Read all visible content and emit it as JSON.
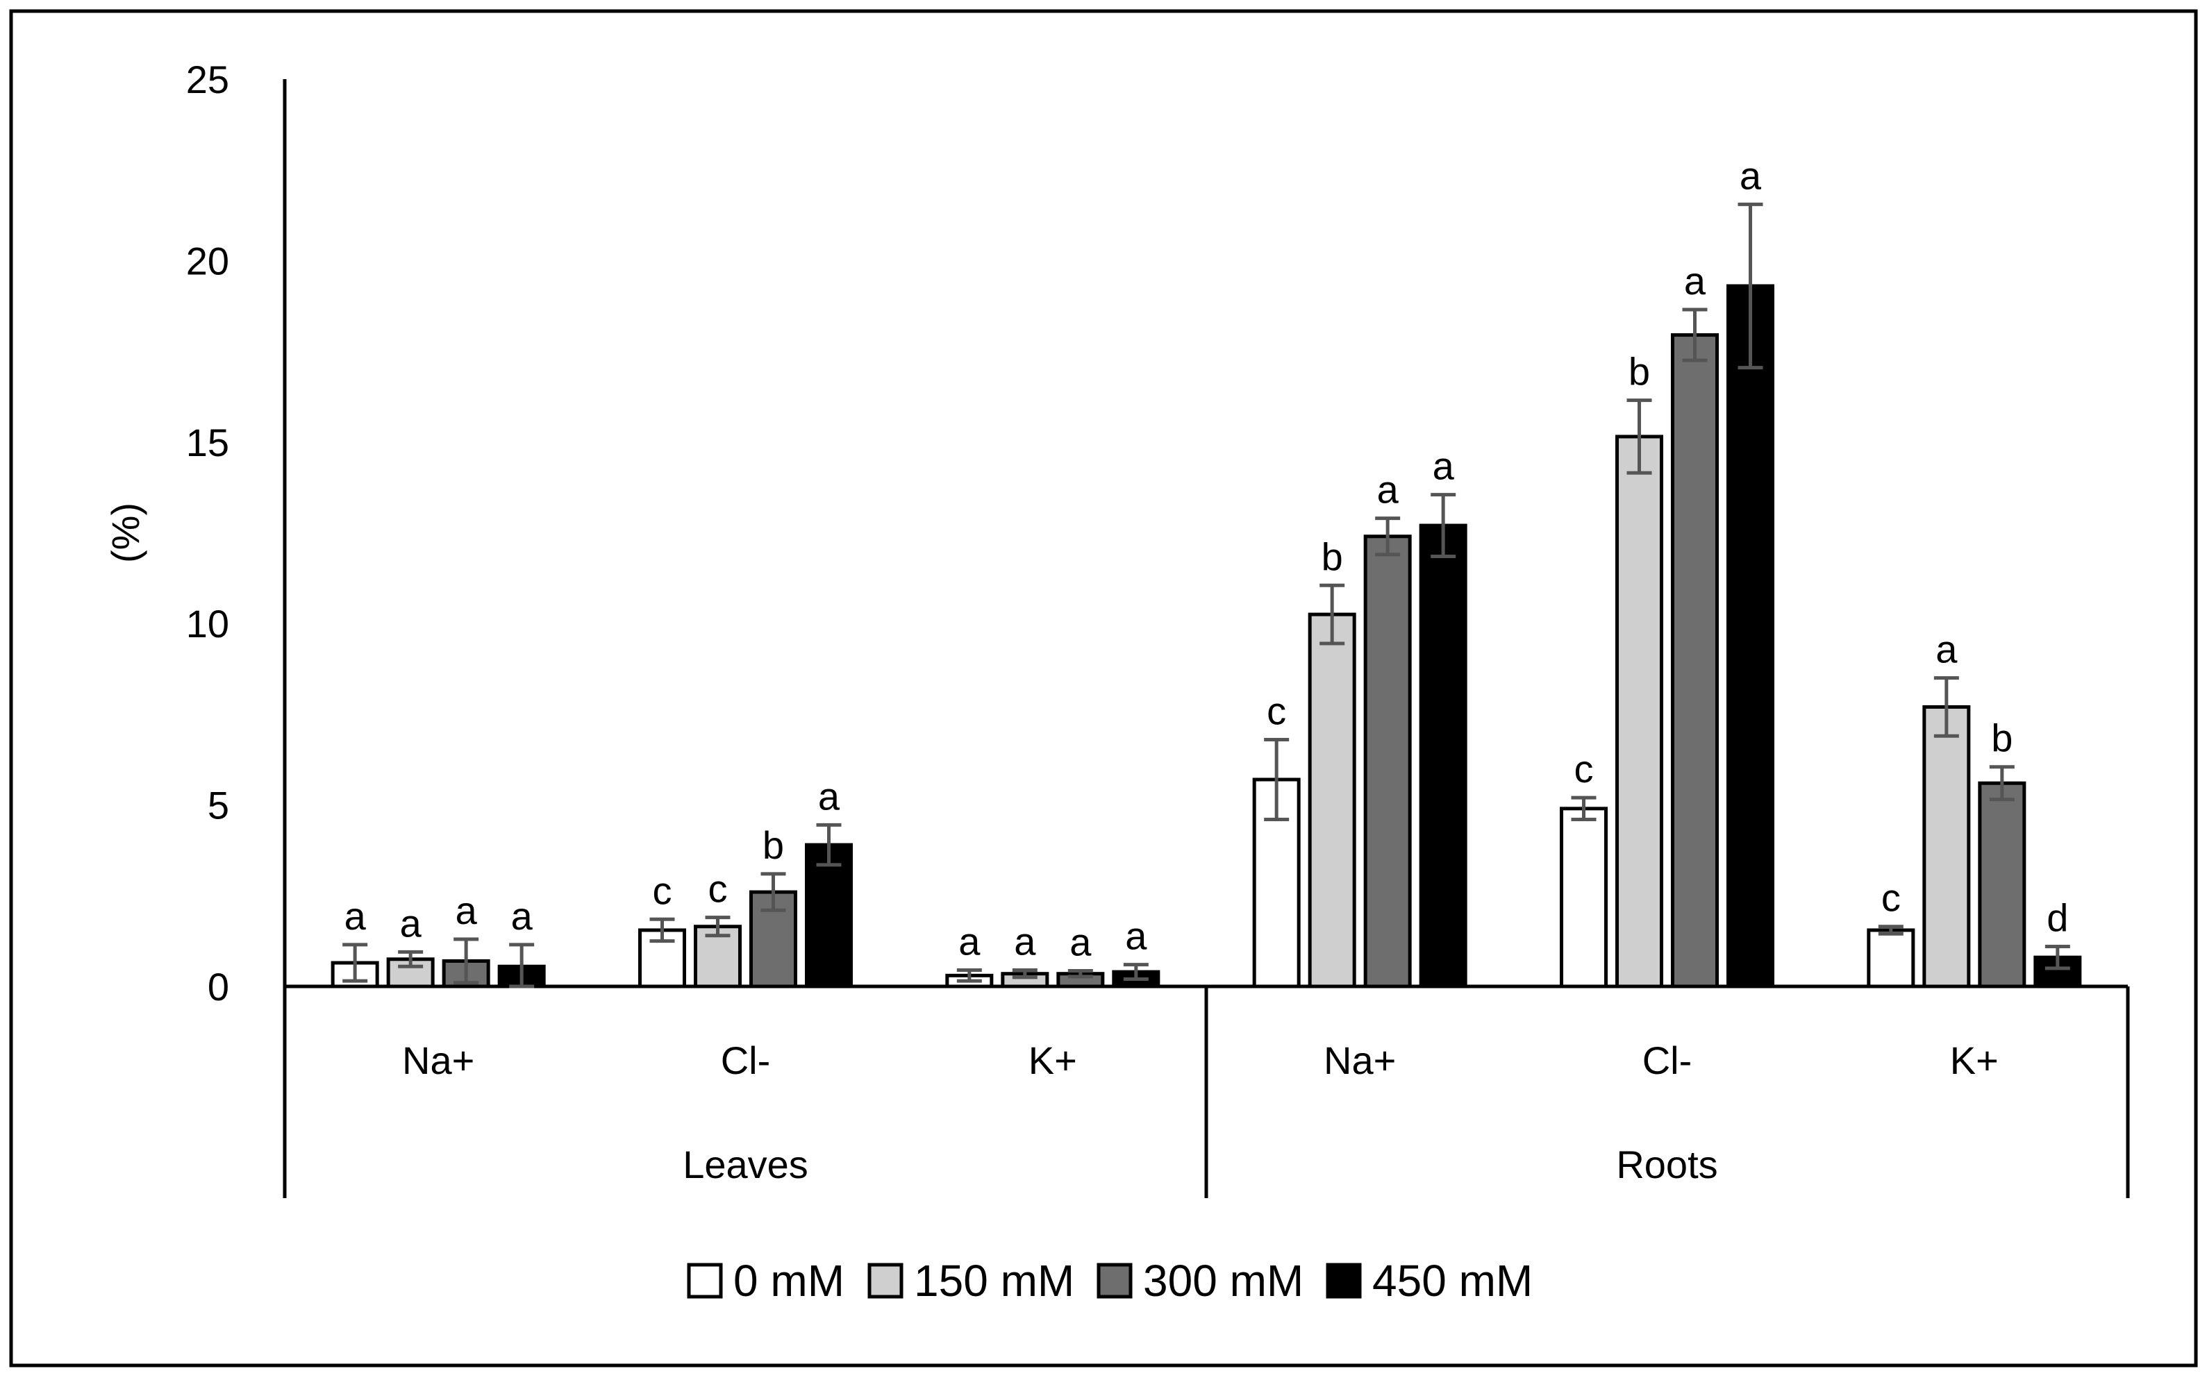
{
  "chart_data": {
    "type": "bar",
    "ylabel": "(%)",
    "ylim": [
      0,
      25
    ],
    "yticks": [
      0,
      5,
      10,
      15,
      20,
      25
    ],
    "grid": false,
    "legend_position": "bottom-center",
    "groups": [
      {
        "name": "Leaves",
        "categories": [
          "Na+",
          "Cl-",
          "K+"
        ]
      },
      {
        "name": "Roots",
        "categories": [
          "Na+",
          "Cl-",
          "K+"
        ]
      }
    ],
    "categories": [
      "Na+",
      "Cl-",
      "K+",
      "Na+",
      "Cl-",
      "K+"
    ],
    "series": [
      {
        "name": "0 mM",
        "color": "#ffffff",
        "values": [
          0.65,
          1.55,
          0.3,
          5.7,
          4.9,
          1.55
        ],
        "errors": [
          0.5,
          0.3,
          0.15,
          1.1,
          0.3,
          0.1
        ],
        "letters": [
          "a",
          "c",
          "a",
          "c",
          "c",
          "c"
        ]
      },
      {
        "name": "150 mM",
        "color": "#cfcfcf",
        "values": [
          0.75,
          1.65,
          0.35,
          10.25,
          15.15,
          7.7
        ],
        "errors": [
          0.2,
          0.25,
          0.1,
          0.8,
          1.0,
          0.8
        ],
        "letters": [
          "a",
          "c",
          "a",
          "b",
          "b",
          "a"
        ]
      },
      {
        "name": "300 mM",
        "color": "#6e6e6e",
        "values": [
          0.7,
          2.6,
          0.35,
          12.4,
          17.95,
          5.6
        ],
        "errors": [
          0.6,
          0.5,
          0.08,
          0.5,
          0.7,
          0.45
        ],
        "letters": [
          "a",
          "b",
          "a",
          "a",
          "a",
          "b"
        ]
      },
      {
        "name": "450 mM",
        "color": "#000000",
        "values": [
          0.55,
          3.9,
          0.4,
          12.7,
          19.3,
          0.8
        ],
        "errors": [
          0.6,
          0.55,
          0.2,
          0.85,
          2.25,
          0.3
        ],
        "letters": [
          "a",
          "a",
          "a",
          "a",
          "a",
          "d"
        ]
      }
    ]
  }
}
